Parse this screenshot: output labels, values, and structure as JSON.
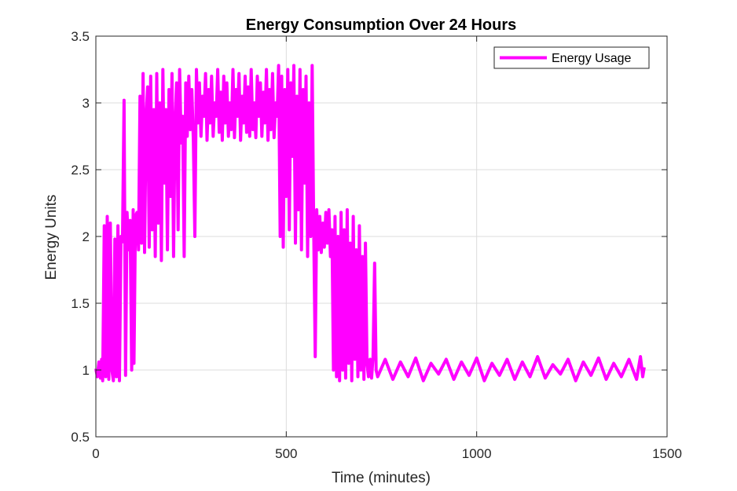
{
  "chart_data": {
    "type": "line",
    "title": "Energy Consumption Over 24 Hours",
    "xlabel": "Time (minutes)",
    "ylabel": "Energy Units",
    "xlim": [
      0,
      1500
    ],
    "ylim": [
      0.5,
      3.5
    ],
    "xticks": [
      0,
      500,
      1000,
      1500
    ],
    "xtick_labels": [
      "0",
      "500",
      "1000",
      "1500"
    ],
    "yticks": [
      0.5,
      1,
      1.5,
      2,
      2.5,
      3,
      3.5
    ],
    "ytick_labels": [
      "0.5",
      "1",
      "1.5",
      "2",
      "2.5",
      "3",
      "3.5"
    ],
    "grid": true,
    "legend": {
      "location": "top-right",
      "entries": [
        "Energy Usage"
      ]
    },
    "series": [
      {
        "name": "Energy Usage",
        "color": "#ff00ff",
        "description_segments": [
          {
            "x_start": 0,
            "x_end": 15,
            "low": 0.95,
            "high": 1.05
          },
          {
            "x_start": 15,
            "x_end": 100,
            "low": 0.92,
            "high": 2.15,
            "pattern": "switching"
          },
          {
            "x_start": 100,
            "x_end": 240,
            "low": 1.85,
            "high": 3.25,
            "pattern": "switching"
          },
          {
            "x_start": 240,
            "x_end": 480,
            "low": 2.72,
            "high": 3.28
          },
          {
            "x_start": 480,
            "x_end": 580,
            "low": 1.9,
            "high": 3.28,
            "pattern": "switching"
          },
          {
            "x_start": 580,
            "x_end": 740,
            "low": 0.92,
            "high": 2.2,
            "pattern": "switching"
          },
          {
            "x_start": 740,
            "x_end": 1440,
            "low": 0.92,
            "high": 1.1
          }
        ],
        "points": [
          [
            0,
            1.01
          ],
          [
            4,
            0.95
          ],
          [
            8,
            1.06
          ],
          [
            12,
            0.94
          ],
          [
            15,
            1.08
          ],
          [
            18,
            0.92
          ],
          [
            22,
            2.08
          ],
          [
            26,
            0.95
          ],
          [
            30,
            2.15
          ],
          [
            34,
            0.93
          ],
          [
            38,
            2.1
          ],
          [
            42,
            1.0
          ],
          [
            46,
            0.92
          ],
          [
            50,
            1.98
          ],
          [
            54,
            0.95
          ],
          [
            58,
            2.08
          ],
          [
            62,
            0.92
          ],
          [
            66,
            2.0
          ],
          [
            70,
            1.96
          ],
          [
            74,
            3.02
          ],
          [
            78,
            0.96
          ],
          [
            82,
            2.18
          ],
          [
            86,
            1.9
          ],
          [
            90,
            2.12
          ],
          [
            94,
            1.0
          ],
          [
            98,
            2.2
          ],
          [
            100,
            1.05
          ],
          [
            104,
            2.15
          ],
          [
            108,
            2.18
          ],
          [
            112,
            1.9
          ],
          [
            116,
            3.05
          ],
          [
            120,
            1.95
          ],
          [
            124,
            3.22
          ],
          [
            128,
            1.88
          ],
          [
            132,
            2.9
          ],
          [
            136,
            3.12
          ],
          [
            140,
            1.92
          ],
          [
            144,
            3.2
          ],
          [
            148,
            2.05
          ],
          [
            152,
            2.95
          ],
          [
            156,
            1.85
          ],
          [
            160,
            3.22
          ],
          [
            164,
            2.1
          ],
          [
            168,
            3.0
          ],
          [
            172,
            1.82
          ],
          [
            176,
            3.25
          ],
          [
            180,
            2.4
          ],
          [
            184,
            2.95
          ],
          [
            188,
            1.9
          ],
          [
            192,
            3.1
          ],
          [
            196,
            2.3
          ],
          [
            200,
            3.22
          ],
          [
            204,
            1.85
          ],
          [
            208,
            2.85
          ],
          [
            212,
            3.15
          ],
          [
            216,
            2.05
          ],
          [
            220,
            3.25
          ],
          [
            224,
            2.7
          ],
          [
            228,
            2.9
          ],
          [
            232,
            1.85
          ],
          [
            236,
            3.15
          ],
          [
            240,
            2.75
          ],
          [
            244,
            3.2
          ],
          [
            248,
            2.8
          ],
          [
            252,
            3.1
          ],
          [
            256,
            2.72
          ],
          [
            260,
            2.0
          ],
          [
            264,
            3.25
          ],
          [
            268,
            2.85
          ],
          [
            272,
            3.15
          ],
          [
            276,
            2.75
          ],
          [
            280,
            3.05
          ],
          [
            284,
            2.9
          ],
          [
            288,
            3.22
          ],
          [
            292,
            2.72
          ],
          [
            296,
            3.1
          ],
          [
            300,
            2.85
          ],
          [
            304,
            3.2
          ],
          [
            308,
            2.75
          ],
          [
            312,
            3.0
          ],
          [
            316,
            2.9
          ],
          [
            320,
            3.25
          ],
          [
            324,
            2.78
          ],
          [
            328,
            3.08
          ],
          [
            332,
            2.72
          ],
          [
            336,
            3.2
          ],
          [
            340,
            2.85
          ],
          [
            344,
            3.15
          ],
          [
            348,
            2.75
          ],
          [
            352,
            3.0
          ],
          [
            356,
            2.8
          ],
          [
            360,
            3.25
          ],
          [
            364,
            2.74
          ],
          [
            368,
            3.1
          ],
          [
            372,
            2.9
          ],
          [
            376,
            3.22
          ],
          [
            380,
            2.72
          ],
          [
            384,
            3.05
          ],
          [
            388,
            2.85
          ],
          [
            392,
            3.2
          ],
          [
            396,
            2.78
          ],
          [
            400,
            3.12
          ],
          [
            404,
            2.75
          ],
          [
            408,
            3.25
          ],
          [
            412,
            2.8
          ],
          [
            416,
            3.0
          ],
          [
            420,
            2.74
          ],
          [
            424,
            3.2
          ],
          [
            428,
            2.9
          ],
          [
            432,
            3.15
          ],
          [
            436,
            2.75
          ],
          [
            440,
            3.08
          ],
          [
            444,
            2.85
          ],
          [
            448,
            3.25
          ],
          [
            452,
            2.72
          ],
          [
            456,
            3.1
          ],
          [
            460,
            2.8
          ],
          [
            464,
            3.22
          ],
          [
            468,
            2.74
          ],
          [
            472,
            3.0
          ],
          [
            476,
            2.9
          ],
          [
            480,
            3.28
          ],
          [
            484,
            2.0
          ],
          [
            488,
            3.2
          ],
          [
            492,
            1.92
          ],
          [
            496,
            3.1
          ],
          [
            500,
            2.3
          ],
          [
            504,
            3.25
          ],
          [
            508,
            2.05
          ],
          [
            512,
            3.15
          ],
          [
            516,
            2.6
          ],
          [
            520,
            3.28
          ],
          [
            524,
            1.95
          ],
          [
            528,
            3.05
          ],
          [
            532,
            2.2
          ],
          [
            536,
            3.25
          ],
          [
            540,
            1.9
          ],
          [
            544,
            3.1
          ],
          [
            548,
            2.4
          ],
          [
            552,
            3.2
          ],
          [
            556,
            1.85
          ],
          [
            560,
            3.0
          ],
          [
            564,
            2.0
          ],
          [
            568,
            3.28
          ],
          [
            572,
            2.1
          ],
          [
            576,
            1.1
          ],
          [
            580,
            2.2
          ],
          [
            584,
            1.9
          ],
          [
            588,
            2.15
          ],
          [
            592,
            1.88
          ],
          [
            596,
            2.1
          ],
          [
            600,
            1.92
          ],
          [
            604,
            2.18
          ],
          [
            608,
            1.95
          ],
          [
            612,
            2.2
          ],
          [
            616,
            1.85
          ],
          [
            620,
            2.05
          ],
          [
            624,
            1.0
          ],
          [
            628,
            2.15
          ],
          [
            632,
            0.95
          ],
          [
            636,
            2.0
          ],
          [
            640,
            0.92
          ],
          [
            644,
            2.18
          ],
          [
            648,
            1.0
          ],
          [
            652,
            2.05
          ],
          [
            656,
            0.94
          ],
          [
            660,
            2.2
          ],
          [
            664,
            1.05
          ],
          [
            668,
            1.95
          ],
          [
            672,
            0.92
          ],
          [
            676,
            2.15
          ],
          [
            680,
            1.08
          ],
          [
            684,
            1.9
          ],
          [
            688,
            0.95
          ],
          [
            692,
            2.08
          ],
          [
            696,
            1.0
          ],
          [
            700,
            1.85
          ],
          [
            704,
            0.93
          ],
          [
            708,
            1.95
          ],
          [
            712,
            1.05
          ],
          [
            716,
            0.95
          ],
          [
            720,
            1.08
          ],
          [
            724,
            0.94
          ],
          [
            728,
            1.1
          ],
          [
            732,
            1.8
          ],
          [
            736,
            1.0
          ],
          [
            740,
            0.95
          ],
          [
            760,
            1.08
          ],
          [
            780,
            0.93
          ],
          [
            800,
            1.06
          ],
          [
            820,
            0.95
          ],
          [
            840,
            1.09
          ],
          [
            860,
            0.92
          ],
          [
            880,
            1.05
          ],
          [
            900,
            0.97
          ],
          [
            920,
            1.08
          ],
          [
            940,
            0.93
          ],
          [
            960,
            1.06
          ],
          [
            980,
            0.96
          ],
          [
            1000,
            1.09
          ],
          [
            1020,
            0.92
          ],
          [
            1040,
            1.05
          ],
          [
            1060,
            0.96
          ],
          [
            1080,
            1.08
          ],
          [
            1100,
            0.93
          ],
          [
            1120,
            1.06
          ],
          [
            1140,
            0.95
          ],
          [
            1160,
            1.1
          ],
          [
            1180,
            0.94
          ],
          [
            1200,
            1.04
          ],
          [
            1220,
            0.97
          ],
          [
            1240,
            1.08
          ],
          [
            1260,
            0.92
          ],
          [
            1280,
            1.06
          ],
          [
            1300,
            0.96
          ],
          [
            1320,
            1.09
          ],
          [
            1340,
            0.93
          ],
          [
            1360,
            1.05
          ],
          [
            1380,
            0.95
          ],
          [
            1400,
            1.08
          ],
          [
            1420,
            0.93
          ],
          [
            1430,
            1.1
          ],
          [
            1436,
            0.95
          ],
          [
            1440,
            1.02
          ]
        ]
      }
    ]
  }
}
